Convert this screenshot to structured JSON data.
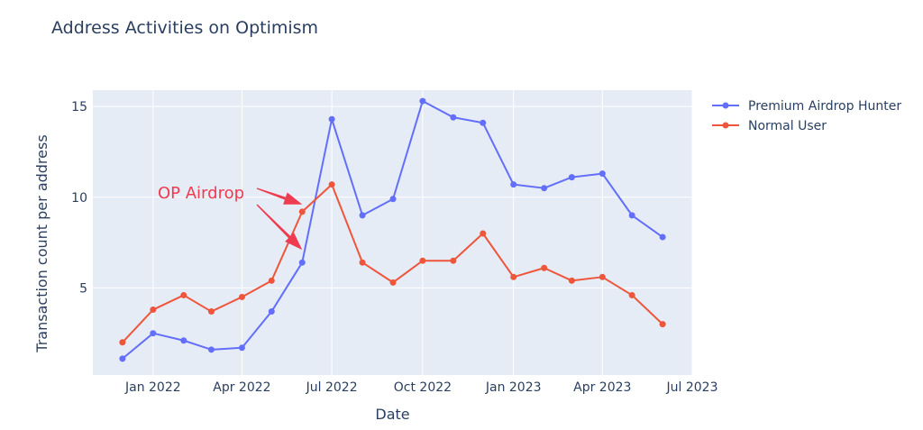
{
  "chart_data": {
    "type": "line",
    "title": "Address Activities on Optimism",
    "xlabel": "Date",
    "ylabel": "Transaction count per address",
    "x": [
      "2021-12-01",
      "2022-01-01",
      "2022-02-01",
      "2022-03-01",
      "2022-04-01",
      "2022-05-01",
      "2022-06-01",
      "2022-07-01",
      "2022-08-01",
      "2022-09-01",
      "2022-10-01",
      "2022-11-01",
      "2022-12-01",
      "2023-01-01",
      "2023-02-01",
      "2023-03-01",
      "2023-04-01",
      "2023-05-01",
      "2023-06-01"
    ],
    "x_ticks": [
      {
        "date": "2022-01-01",
        "label": "Jan 2022"
      },
      {
        "date": "2022-04-01",
        "label": "Apr 2022"
      },
      {
        "date": "2022-07-01",
        "label": "Jul 2022"
      },
      {
        "date": "2022-10-01",
        "label": "Oct 2022"
      },
      {
        "date": "2023-01-01",
        "label": "Jan 2023"
      },
      {
        "date": "2023-04-01",
        "label": "Apr 2023"
      },
      {
        "date": "2023-07-01",
        "label": "Jul 2023"
      }
    ],
    "xlim": [
      "2021-11-01",
      "2023-07-01"
    ],
    "y_ticks": [
      5,
      10,
      15
    ],
    "ylim": [
      0.2,
      15.9
    ],
    "grid": true,
    "legend_position": "top-right",
    "series": [
      {
        "name": "Premium Airdrop Hunter",
        "color": "#636efa",
        "values": [
          1.1,
          2.5,
          2.1,
          1.6,
          1.7,
          3.7,
          6.4,
          14.3,
          9.0,
          9.9,
          15.3,
          14.4,
          14.1,
          10.7,
          10.5,
          11.1,
          11.3,
          9.0,
          7.8
        ]
      },
      {
        "name": "Normal User",
        "color": "#ef553b",
        "values": [
          2.0,
          3.8,
          4.6,
          3.7,
          4.5,
          5.4,
          9.2,
          10.7,
          6.4,
          5.3,
          6.5,
          6.5,
          8.0,
          5.6,
          6.1,
          5.4,
          5.6,
          4.6,
          3.0
        ]
      }
    ],
    "annotation": {
      "text": "OP Airdrop",
      "color": "#ef3b4f",
      "arrow_targets": [
        {
          "date": "2022-06-01",
          "value": 9.6
        },
        {
          "date": "2022-06-01",
          "value": 7.1
        }
      ]
    }
  }
}
